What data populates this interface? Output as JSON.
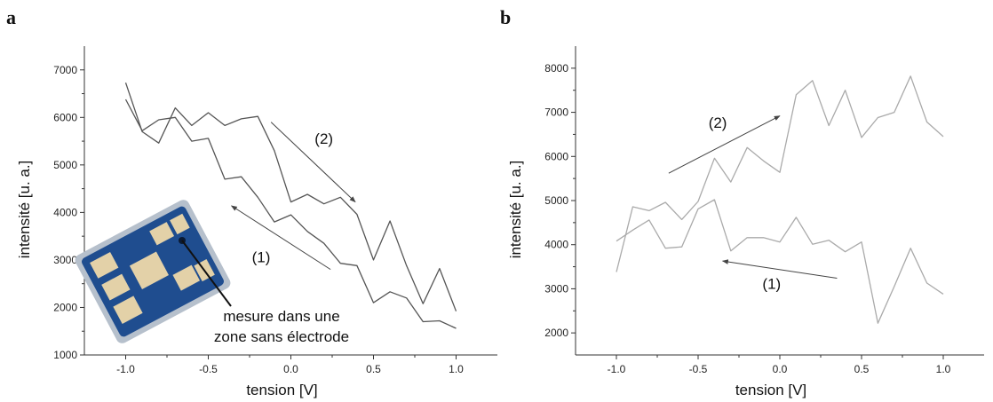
{
  "chart_data": [
    {
      "panel": "a",
      "type": "line",
      "xlabel": "tension [V]",
      "ylabel": "intensité [u. a.]",
      "xlim": [
        -1.25,
        1.25
      ],
      "ylim": [
        1000,
        7500
      ],
      "xticks": [
        -1.0,
        -0.5,
        0.0,
        0.5,
        1.0
      ],
      "xtick_labels": [
        "-1.0",
        "-0.5",
        "0.0",
        "0.5",
        "1.0"
      ],
      "yticks": [
        1000,
        2000,
        3000,
        4000,
        5000,
        6000,
        7000
      ],
      "ytick_labels": [
        "1000",
        "2000",
        "3000",
        "4000",
        "5000",
        "6000",
        "7000"
      ],
      "grid": false,
      "line_color": "#555555",
      "series": [
        {
          "x": [
            -1.0,
            -0.9,
            -0.8,
            -0.7,
            -0.6,
            -0.5,
            -0.4,
            -0.3,
            -0.2,
            -0.1,
            0.0,
            0.1,
            0.2,
            0.3,
            0.4,
            0.5,
            0.6,
            0.7,
            0.8,
            0.9,
            1.0
          ],
          "values": [
            6380,
            5720,
            5950,
            6000,
            5500,
            5560,
            4700,
            4750,
            4320,
            3800,
            3950,
            3600,
            3350,
            2930,
            2880,
            2100,
            2330,
            2200,
            1700,
            1720,
            1560
          ]
        },
        {
          "x": [
            -1.0,
            -0.9,
            -0.8,
            -0.7,
            -0.6,
            -0.5,
            -0.4,
            -0.3,
            -0.2,
            -0.1,
            0.0,
            0.1,
            0.2,
            0.3,
            0.4,
            0.5,
            0.6,
            0.7,
            0.8,
            0.9,
            1.0
          ],
          "values": [
            6730,
            5700,
            5460,
            6200,
            5830,
            6100,
            5830,
            5970,
            6020,
            5300,
            4220,
            4380,
            4180,
            4320,
            3960,
            3000,
            3820,
            2880,
            2080,
            2820,
            1920
          ]
        }
      ],
      "annotations": [
        {
          "text": "(1)",
          "x": -0.18,
          "y": 2950
        },
        {
          "text": "(2)",
          "x": 0.2,
          "y": 5450
        }
      ],
      "arrows": [
        {
          "from": [
            0.24,
            2800
          ],
          "to": [
            -0.36,
            4140
          ]
        },
        {
          "from": [
            -0.12,
            5900
          ],
          "to": [
            0.39,
            4220
          ]
        }
      ],
      "callout": {
        "lines": [
          "mesure dans une",
          "zone sans électrode"
        ],
        "colors": {
          "substrate": "#1f4d8f",
          "electrode": "#e3d1a8",
          "edge": "#9aa7b8"
        }
      }
    },
    {
      "panel": "b",
      "type": "line",
      "xlabel": "tension [V]",
      "ylabel": "intensité [u. a.]",
      "xlim": [
        -1.25,
        1.25
      ],
      "ylim": [
        1500,
        8500
      ],
      "xticks": [
        -1.0,
        -0.5,
        0.0,
        0.5,
        1.0
      ],
      "xtick_labels": [
        "-1.0",
        "-0.5",
        "0.0",
        "0.5",
        "1.0"
      ],
      "yticks": [
        2000,
        3000,
        4000,
        5000,
        6000,
        7000,
        8000
      ],
      "ytick_labels": [
        "2000",
        "3000",
        "4000",
        "5000",
        "6000",
        "7000",
        "8000"
      ],
      "grid": false,
      "line_color": "#aaaaaa",
      "series": [
        {
          "x": [
            -1.0,
            -0.9,
            -0.8,
            -0.7,
            -0.6,
            -0.5,
            -0.4,
            -0.3,
            -0.2,
            -0.1,
            0.0,
            0.1,
            0.2,
            0.3,
            0.4,
            0.5,
            0.6,
            0.7,
            0.8,
            0.9,
            1.0
          ],
          "values": [
            4080,
            4330,
            4560,
            3920,
            3950,
            4810,
            5020,
            3860,
            4160,
            4160,
            4060,
            4620,
            4010,
            4100,
            3840,
            4060,
            2220,
            3050,
            3920,
            3130,
            2880
          ]
        },
        {
          "x": [
            -1.0,
            -0.9,
            -0.8,
            -0.7,
            -0.6,
            -0.5,
            -0.4,
            -0.3,
            -0.2,
            -0.1,
            0.0,
            0.1,
            0.2,
            0.3,
            0.4,
            0.5,
            0.6,
            0.7,
            0.8,
            0.9,
            1.0
          ],
          "values": [
            3380,
            4860,
            4770,
            4960,
            4570,
            4980,
            5960,
            5420,
            6200,
            5900,
            5640,
            7400,
            7720,
            6700,
            7500,
            6430,
            6880,
            7000,
            7820,
            6780,
            6450
          ]
        }
      ],
      "annotations": [
        {
          "text": "(1)",
          "x": -0.05,
          "y": 3000
        },
        {
          "text": "(2)",
          "x": -0.38,
          "y": 6650
        }
      ],
      "arrows": [
        {
          "from": [
            0.35,
            3240
          ],
          "to": [
            -0.35,
            3630
          ]
        },
        {
          "from": [
            -0.68,
            5620
          ],
          "to": [
            0.0,
            6920
          ]
        }
      ]
    }
  ],
  "panel_labels": {
    "a": "a",
    "b": "b"
  }
}
